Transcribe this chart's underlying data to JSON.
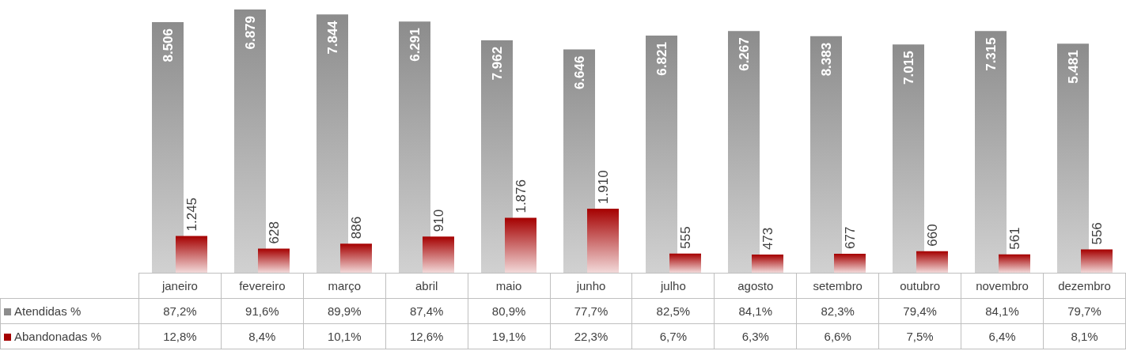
{
  "chart_data": {
    "type": "bar",
    "categories": [
      "janeiro",
      "fevereiro",
      "março",
      "abril",
      "maio",
      "junho",
      "julho",
      "agosto",
      "setembro",
      "outubro",
      "novembro",
      "dezembro"
    ],
    "legend": "bottom",
    "series": [
      {
        "name": "Atendidas %",
        "color": "#8c8c8c",
        "values": [
          87.2,
          91.6,
          89.9,
          87.4,
          80.9,
          77.7,
          82.5,
          84.1,
          82.3,
          79.4,
          84.1,
          79.7
        ],
        "value_labels": [
          "87,2%",
          "91,6%",
          "89,9%",
          "87,4%",
          "80,9%",
          "77,7%",
          "82,5%",
          "84,1%",
          "82,3%",
          "79,4%",
          "84,1%",
          "79,7%"
        ]
      },
      {
        "name": "Abandonadas %",
        "color": "#a50000",
        "values": [
          12.8,
          8.4,
          10.1,
          12.6,
          19.1,
          22.3,
          6.7,
          6.3,
          6.6,
          7.5,
          6.4,
          8.1
        ],
        "value_labels": [
          "12,8%",
          "8,4%",
          "10,1%",
          "12,6%",
          "19,1%",
          "22,3%",
          "6,7%",
          "6,3%",
          "6,6%",
          "7,5%",
          "6,4%",
          "8,1%"
        ]
      }
    ],
    "annotations": [
      {
        "text": "8.506",
        "x": "janeiro",
        "y": 87.2
      },
      {
        "text": "6.879",
        "x": "fevereiro",
        "y": 91.6
      },
      {
        "text": "7.844",
        "x": "março",
        "y": 89.9
      },
      {
        "text": "6.291",
        "x": "abril",
        "y": 87.4
      },
      {
        "text": "7.962",
        "x": "maio",
        "y": 80.9
      },
      {
        "text": "6.646",
        "x": "junho",
        "y": 77.7
      },
      {
        "text": "6.821",
        "x": "julho",
        "y": 82.5
      },
      {
        "text": "6.267",
        "x": "agosto",
        "y": 84.1
      },
      {
        "text": "8.383",
        "x": "setembro",
        "y": 82.3
      },
      {
        "text": "7.015",
        "x": "outubro",
        "y": 79.4
      },
      {
        "text": "7.315",
        "x": "novembro",
        "y": 84.1
      },
      {
        "text": "5.481",
        "x": "dezembro",
        "y": 79.7
      },
      {
        "text": "1.245",
        "x": "janeiro",
        "y": 12.8
      },
      {
        "text": "628",
        "x": "fevereiro",
        "y": 8.4
      },
      {
        "text": "886",
        "x": "março",
        "y": 10.1
      },
      {
        "text": "910",
        "x": "abril",
        "y": 12.6
      },
      {
        "text": "1.876",
        "x": "maio",
        "y": 19.1
      },
      {
        "text": "1.910",
        "x": "junho",
        "y": 22.3
      },
      {
        "text": "555",
        "x": "julho",
        "y": 6.7
      },
      {
        "text": "473",
        "x": "agosto",
        "y": 6.3
      },
      {
        "text": "677",
        "x": "setembro",
        "y": 6.6
      },
      {
        "text": "660",
        "x": "outubro",
        "y": 7.5
      },
      {
        "text": "561",
        "x": "novembro",
        "y": 6.4
      },
      {
        "text": "556",
        "x": "dezembro",
        "y": 8.1
      }
    ]
  }
}
